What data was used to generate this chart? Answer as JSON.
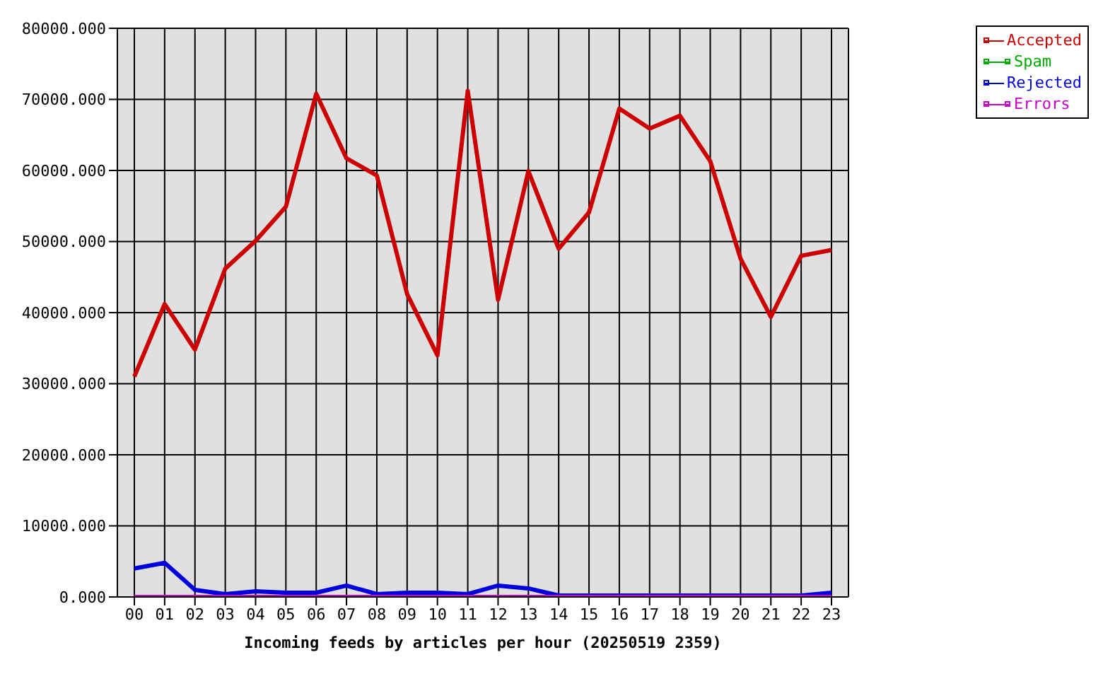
{
  "chart_data": {
    "type": "line",
    "xlabel": "Incoming feeds by articles per hour (20250519 2359)",
    "categories": [
      "00",
      "01",
      "02",
      "03",
      "04",
      "05",
      "06",
      "07",
      "08",
      "09",
      "10",
      "11",
      "12",
      "13",
      "14",
      "15",
      "16",
      "17",
      "18",
      "19",
      "20",
      "21",
      "22",
      "23"
    ],
    "series": [
      {
        "name": "Accepted",
        "color": "#cc0000",
        "values": [
          31000,
          41200,
          34800,
          46200,
          50100,
          54900,
          70800,
          61700,
          59300,
          42600,
          34000,
          71200,
          41800,
          59900,
          49000,
          54100,
          68700,
          65900,
          67700,
          61300,
          47600,
          39400,
          48000,
          48800
        ]
      },
      {
        "name": "Spam",
        "color": "#00aa00",
        "values": [
          null,
          null,
          null,
          null,
          null,
          null,
          null,
          null,
          null,
          null,
          null,
          null,
          null,
          null,
          null,
          null,
          null,
          null,
          null,
          null,
          null,
          null,
          null,
          null
        ]
      },
      {
        "name": "Rejected",
        "color": "#0000dd",
        "values": [
          4000,
          4800,
          1000,
          400,
          800,
          600,
          600,
          1600,
          400,
          600,
          600,
          400,
          1600,
          1200,
          200,
          200,
          200,
          200,
          200,
          200,
          200,
          200,
          200,
          600
        ]
      },
      {
        "name": "Errors",
        "color": "#cc00cc",
        "values": [
          0,
          0,
          0,
          0,
          0,
          0,
          0,
          0,
          0,
          0,
          0,
          0,
          0,
          0,
          0,
          0,
          0,
          0,
          0,
          0,
          0,
          0,
          0,
          0
        ]
      }
    ],
    "ylim": [
      0,
      80000
    ],
    "yticks": [
      {
        "value": 0,
        "label": "0.000"
      },
      {
        "value": 10000,
        "label": "10000.000"
      },
      {
        "value": 20000,
        "label": "20000.000"
      },
      {
        "value": 30000,
        "label": "30000.000"
      },
      {
        "value": 40000,
        "label": "40000.000"
      },
      {
        "value": 50000,
        "label": "50000.000"
      },
      {
        "value": 60000,
        "label": "60000.000"
      },
      {
        "value": 70000,
        "label": "70000.000"
      },
      {
        "value": 80000,
        "label": "80000.000"
      }
    ],
    "grid": true,
    "legend": "top right",
    "marker": "none",
    "line_style": "solid"
  }
}
